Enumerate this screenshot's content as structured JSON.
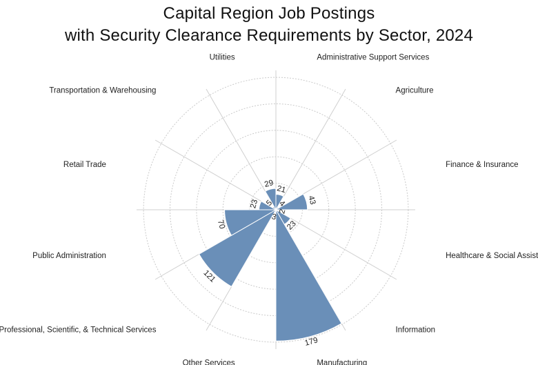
{
  "title_line1": "Capital Region Job Postings",
  "title_line2": "with Security Clearance Requirements by Sector, 2024",
  "chart_data": {
    "type": "polar-area",
    "title": "Capital Region Job Postings with Security Clearance Requirements by Sector, 2024",
    "series": [
      {
        "values": [
          21,
          4,
          43,
          2,
          23,
          179,
          3,
          121,
          70,
          23,
          5,
          29
        ]
      }
    ],
    "categories": [
      "Administrative Support Services",
      "Agriculture",
      "Finance & Insurance",
      "Healthcare & Social Assistance",
      "Information",
      "Manufacturing",
      "Other Services",
      "Professional, Scientific, & Technical Services",
      "Public Administration",
      "Retail Trade",
      "Transportation & Warehousing",
      "Utilities"
    ],
    "values": [
      21,
      4,
      43,
      2,
      23,
      179,
      3,
      121,
      70,
      23,
      5,
      29
    ],
    "bar_color": "#6a8fb8",
    "grid": true,
    "rmax": 190
  }
}
